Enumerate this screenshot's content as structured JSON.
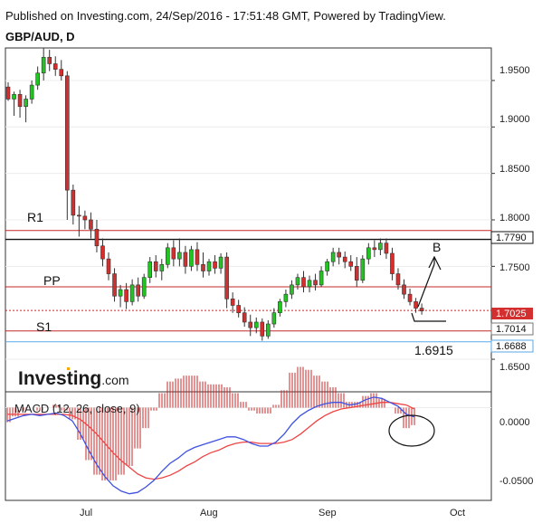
{
  "header": {
    "published": "Published on Investing.com, 24/Sep/2016 - 17:51:48 GMT, Powered by TradingView.",
    "symbol": "GBP/AUD, D"
  },
  "watermark": {
    "brand": "Investing",
    "suffix": ".com"
  },
  "chart_data": [
    {
      "type": "candlestick",
      "price_ticks": [
        "1.9500",
        "1.9000",
        "1.8500",
        "1.8000",
        "1.7500",
        "1.6500"
      ],
      "x_labels": [
        "Jul",
        "Aug",
        "Sep",
        "Oct"
      ],
      "ylim": [
        1.615,
        1.985
      ],
      "levels": [
        {
          "label": "R1",
          "value": 1.7885,
          "color": "#c62828"
        },
        {
          "label": "",
          "value": 1.779,
          "color": "#111111"
        },
        {
          "label": "PP",
          "value": 1.728,
          "color": "#c62828"
        },
        {
          "label": "",
          "value": 1.7025,
          "color": "#c62828",
          "dashed": true
        },
        {
          "label": "S1",
          "value": 1.6805,
          "color": "#c62828"
        },
        {
          "label": "",
          "value": 1.6688,
          "color": "#5aa9e6"
        }
      ],
      "price_tags": [
        {
          "text": "1.7790",
          "value": 1.779,
          "bg": "#ffffff",
          "fg": "#111111",
          "border": "#111111"
        },
        {
          "text": "1.7025",
          "value": 1.7025,
          "bg": "#d32f2f",
          "fg": "#ffffff",
          "border": "#d32f2f"
        },
        {
          "text": "1.7014",
          "value": 1.7014,
          "bg": "#ffffff",
          "fg": "#111111",
          "border": "#777777"
        },
        {
          "text": "1.6688",
          "value": 1.6688,
          "bg": "#ffffff",
          "fg": "#111111",
          "border": "#5aa9e6"
        }
      ],
      "annotations": [
        "B",
        "1.6915"
      ],
      "candles": [
        [
          1.943,
          1.948,
          1.928,
          1.93
        ],
        [
          1.93,
          1.938,
          1.912,
          1.935
        ],
        [
          1.935,
          1.94,
          1.91,
          1.922
        ],
        [
          1.922,
          1.934,
          1.905,
          1.93
        ],
        [
          1.93,
          1.95,
          1.925,
          1.945
        ],
        [
          1.945,
          1.965,
          1.94,
          1.958
        ],
        [
          1.958,
          1.985,
          1.95,
          1.975
        ],
        [
          1.975,
          1.983,
          1.96,
          1.968
        ],
        [
          1.968,
          1.976,
          1.955,
          1.962
        ],
        [
          1.962,
          1.972,
          1.95,
          1.955
        ],
        [
          1.955,
          1.96,
          1.8,
          1.832
        ],
        [
          1.832,
          1.838,
          1.795,
          1.805
        ],
        [
          1.805,
          1.815,
          1.782,
          1.804
        ],
        [
          1.804,
          1.81,
          1.79,
          1.8
        ],
        [
          1.8,
          1.808,
          1.78,
          1.79
        ],
        [
          1.79,
          1.8,
          1.765,
          1.772
        ],
        [
          1.772,
          1.78,
          1.75,
          1.758
        ],
        [
          1.758,
          1.765,
          1.735,
          1.742
        ],
        [
          1.742,
          1.748,
          1.712,
          1.718
        ],
        [
          1.718,
          1.73,
          1.706,
          1.725
        ],
        [
          1.725,
          1.732,
          1.704,
          1.712
        ],
        [
          1.712,
          1.736,
          1.708,
          1.73
        ],
        [
          1.73,
          1.738,
          1.712,
          1.718
        ],
        [
          1.718,
          1.742,
          1.715,
          1.738
        ],
        [
          1.738,
          1.76,
          1.732,
          1.755
        ],
        [
          1.755,
          1.762,
          1.738,
          1.745
        ],
        [
          1.745,
          1.758,
          1.735,
          1.752
        ],
        [
          1.752,
          1.775,
          1.748,
          1.77
        ],
        [
          1.77,
          1.778,
          1.75,
          1.758
        ],
        [
          1.758,
          1.78,
          1.75,
          1.765
        ],
        [
          1.765,
          1.772,
          1.742,
          1.75
        ],
        [
          1.75,
          1.772,
          1.745,
          1.768
        ],
        [
          1.768,
          1.776,
          1.745,
          1.752
        ],
        [
          1.752,
          1.765,
          1.738,
          1.745
        ],
        [
          1.745,
          1.758,
          1.74,
          1.755
        ],
        [
          1.755,
          1.762,
          1.742,
          1.748
        ],
        [
          1.748,
          1.764,
          1.742,
          1.76
        ],
        [
          1.76,
          1.765,
          1.705,
          1.715
        ],
        [
          1.715,
          1.722,
          1.7,
          1.708
        ],
        [
          1.708,
          1.714,
          1.695,
          1.7
        ],
        [
          1.7,
          1.706,
          1.685,
          1.69
        ],
        [
          1.69,
          1.698,
          1.675,
          1.684
        ],
        [
          1.684,
          1.695,
          1.678,
          1.69
        ],
        [
          1.69,
          1.694,
          1.67,
          1.675
        ],
        [
          1.675,
          1.692,
          1.672,
          1.688
        ],
        [
          1.688,
          1.705,
          1.684,
          1.7
        ],
        [
          1.7,
          1.715,
          1.696,
          1.712
        ],
        [
          1.712,
          1.725,
          1.706,
          1.72
        ],
        [
          1.72,
          1.735,
          1.715,
          1.73
        ],
        [
          1.73,
          1.742,
          1.725,
          1.738
        ],
        [
          1.738,
          1.745,
          1.722,
          1.728
        ],
        [
          1.728,
          1.74,
          1.722,
          1.735
        ],
        [
          1.735,
          1.742,
          1.724,
          1.73
        ],
        [
          1.73,
          1.75,
          1.728,
          1.745
        ],
        [
          1.745,
          1.758,
          1.74,
          1.755
        ],
        [
          1.755,
          1.77,
          1.75,
          1.765
        ],
        [
          1.765,
          1.77,
          1.752,
          1.76
        ],
        [
          1.76,
          1.766,
          1.748,
          1.755
        ],
        [
          1.755,
          1.762,
          1.745,
          1.75
        ],
        [
          1.75,
          1.76,
          1.728,
          1.735
        ],
        [
          1.735,
          1.762,
          1.732,
          1.758
        ],
        [
          1.758,
          1.775,
          1.752,
          1.77
        ],
        [
          1.77,
          1.778,
          1.76,
          1.768
        ],
        [
          1.768,
          1.78,
          1.762,
          1.775
        ],
        [
          1.775,
          1.78,
          1.758,
          1.764
        ],
        [
          1.764,
          1.77,
          1.735,
          1.742
        ],
        [
          1.742,
          1.748,
          1.725,
          1.73
        ],
        [
          1.73,
          1.736,
          1.715,
          1.72
        ],
        [
          1.72,
          1.726,
          1.708,
          1.712
        ],
        [
          1.712,
          1.716,
          1.7,
          1.705
        ],
        [
          1.705,
          1.71,
          1.698,
          1.702
        ]
      ]
    },
    {
      "type": "macd",
      "label": "MACD (12, 26, close, 9)",
      "y_ticks": [
        "0.0000",
        "-0.0500"
      ],
      "ylim": [
        -0.07,
        0.012
      ],
      "macd": [
        -0.01,
        -0.008,
        -0.006,
        -0.005,
        -0.006,
        -0.005,
        -0.004,
        -0.006,
        -0.01,
        -0.02,
        -0.032,
        -0.043,
        -0.052,
        -0.059,
        -0.063,
        -0.065,
        -0.064,
        -0.06,
        -0.055,
        -0.048,
        -0.042,
        -0.038,
        -0.033,
        -0.03,
        -0.028,
        -0.026,
        -0.024,
        -0.022,
        -0.022,
        -0.024,
        -0.027,
        -0.029,
        -0.029,
        -0.026,
        -0.02,
        -0.012,
        -0.006,
        -0.002,
        0.001,
        0.003,
        0.004,
        0.004,
        0.002,
        0.003,
        0.006,
        0.008,
        0.007,
        0.004,
        0.001,
        -0.005,
        -0.007
      ],
      "signal": [
        -0.005,
        -0.005,
        -0.005,
        -0.005,
        -0.005,
        -0.005,
        -0.005,
        -0.005,
        -0.006,
        -0.009,
        -0.014,
        -0.02,
        -0.027,
        -0.034,
        -0.04,
        -0.045,
        -0.05,
        -0.053,
        -0.054,
        -0.053,
        -0.051,
        -0.048,
        -0.044,
        -0.041,
        -0.037,
        -0.034,
        -0.032,
        -0.029,
        -0.027,
        -0.026,
        -0.026,
        -0.027,
        -0.027,
        -0.027,
        -0.026,
        -0.024,
        -0.02,
        -0.015,
        -0.01,
        -0.006,
        -0.003,
        -0.001,
        0.0,
        0.001,
        0.002,
        0.003,
        0.004,
        0.004,
        0.003,
        0.002,
        -0.001
      ],
      "hist_color": "#c62828",
      "macd_color": "#3f51e0",
      "signal_color": "#ef4444"
    }
  ]
}
